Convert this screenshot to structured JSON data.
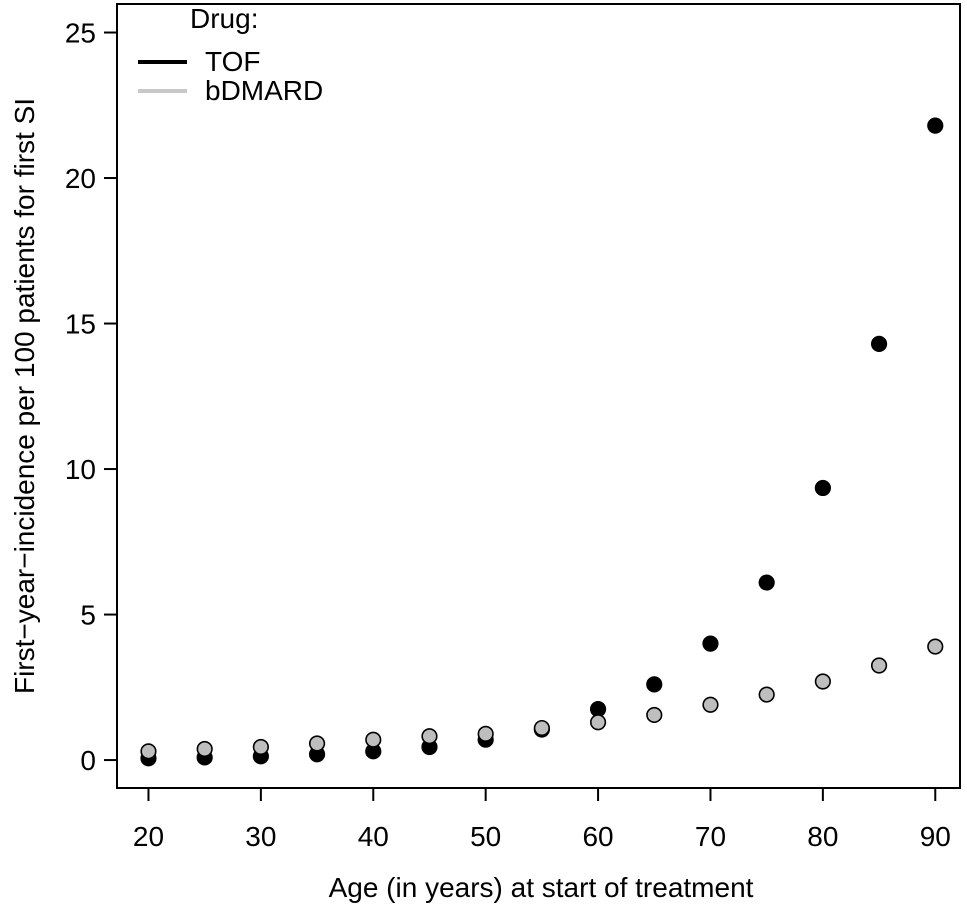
{
  "figure": {
    "background": "#ffffff",
    "text_color": "#000000"
  },
  "chart_data": {
    "type": "scatter",
    "title": "",
    "xlabel": "Age (in years) at start of treatment",
    "ylabel": "First−year−incidence per 100 patients for first SI",
    "x": [
      20,
      25,
      30,
      35,
      40,
      45,
      50,
      55,
      60,
      65,
      70,
      75,
      80,
      85,
      90
    ],
    "xticks": [
      20,
      30,
      40,
      50,
      60,
      70,
      80,
      90
    ],
    "yticks": [
      0,
      5,
      10,
      15,
      20,
      25
    ],
    "xlim": [
      17.2,
      92.2
    ],
    "ylim": [
      -0.96,
      25.98
    ],
    "grid": false,
    "legend": {
      "title": "Drug:",
      "position": "top-left",
      "entries": [
        {
          "label": "TOF",
          "color": "#000000"
        },
        {
          "label": "bDMARD",
          "color": "#c8c8c8"
        }
      ]
    },
    "series": [
      {
        "name": "TOF",
        "marker": "filled-circle",
        "fill": "#000000",
        "stroke": "#000000",
        "values": [
          0.06,
          0.09,
          0.13,
          0.2,
          0.3,
          0.45,
          0.7,
          1.05,
          1.75,
          2.6,
          4.0,
          6.1,
          9.35,
          14.3,
          21.8
        ]
      },
      {
        "name": "bDMARD",
        "marker": "circle",
        "fill": "#bebebe",
        "stroke": "#000000",
        "values": [
          0.3,
          0.38,
          0.45,
          0.57,
          0.7,
          0.82,
          0.9,
          1.1,
          1.3,
          1.55,
          1.9,
          2.25,
          2.7,
          3.25,
          3.9
        ]
      }
    ]
  }
}
